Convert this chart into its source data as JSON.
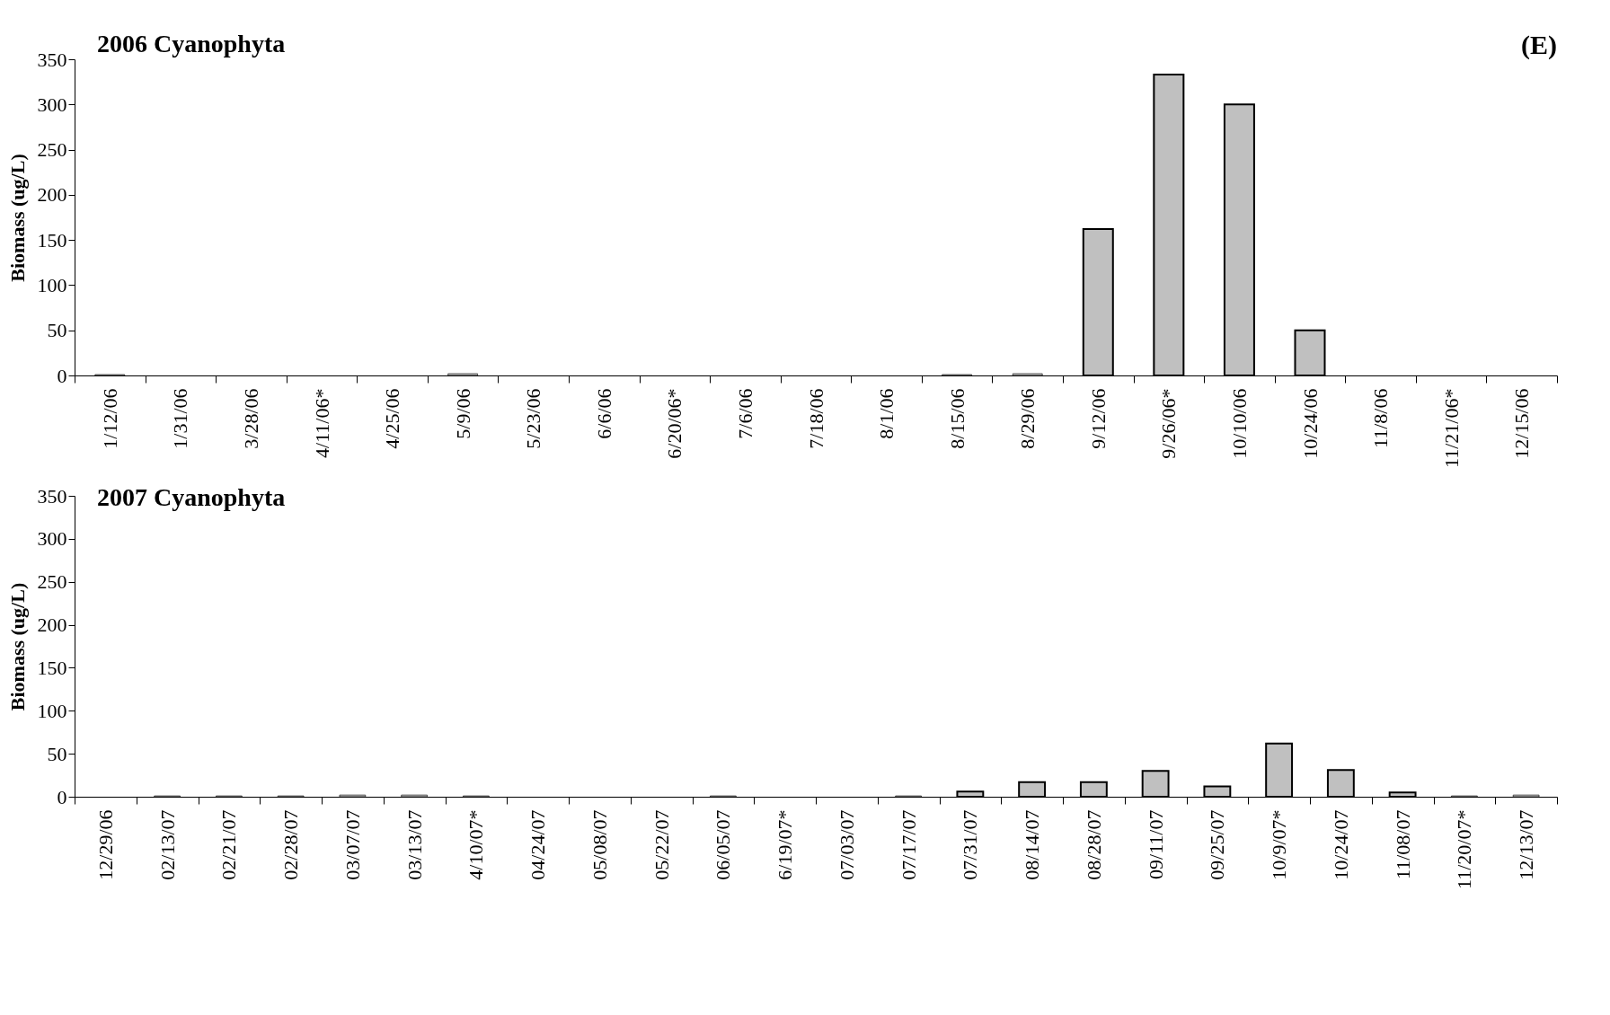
{
  "chart_data": [
    {
      "type": "bar",
      "title": "2006 Cyanophyta",
      "ylabel": "Biomass (ug/L)",
      "annotations": [
        "(E)"
      ],
      "categories": [
        "1/12/06",
        "1/31/06",
        "3/28/06",
        "4/11/06*",
        "4/25/06",
        "5/9/06",
        "5/23/06",
        "6/6/06",
        "6/20/06*",
        "7/6/06",
        "7/18/06",
        "8/1/06",
        "8/15/06",
        "8/29/06",
        "9/12/06",
        "9/26/06*",
        "10/10/06",
        "10/24/06",
        "11/8/06",
        "11/21/06*",
        "12/15/06"
      ],
      "values": [
        1,
        0,
        0,
        0,
        0,
        2,
        0,
        0,
        0,
        0,
        0,
        0,
        1,
        2,
        162,
        333,
        300,
        50,
        0,
        0,
        0
      ],
      "color": "#c0c0c0",
      "ylim": [
        0,
        350
      ],
      "yticks": [
        0,
        50,
        100,
        150,
        200,
        250,
        300,
        350
      ]
    },
    {
      "type": "bar",
      "title": "2007 Cyanophyta",
      "ylabel": "Biomass (ug/L)",
      "categories": [
        "12/29/06",
        "02/13/07",
        "02/21/07",
        "02/28/07",
        "03/07/07",
        "03/13/07",
        "4/10/07*",
        "04/24/07",
        "05/08/07",
        "05/22/07",
        "06/05/07",
        "6/19/07*",
        "07/03/07",
        "07/17/07",
        "07/31/07",
        "08/14/07",
        "08/28/07",
        "09/11/07",
        "09/25/07",
        "10/9/07*",
        "10/24/07",
        "11/08/07",
        "11/20/07*",
        "12/13/07"
      ],
      "values": [
        0,
        1,
        1,
        1,
        2,
        2,
        1,
        0,
        0,
        0,
        1,
        0,
        0,
        1,
        6,
        17,
        17,
        30,
        12,
        62,
        31,
        5,
        1,
        2
      ],
      "color": "#c0c0c0",
      "ylim": [
        0,
        350
      ],
      "yticks": [
        0,
        50,
        100,
        150,
        200,
        250,
        300,
        350
      ]
    }
  ]
}
